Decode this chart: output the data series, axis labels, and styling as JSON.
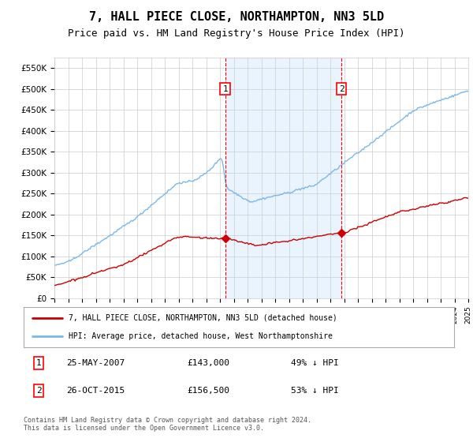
{
  "title": "7, HALL PIECE CLOSE, NORTHAMPTON, NN3 5LD",
  "subtitle": "Price paid vs. HM Land Registry's House Price Index (HPI)",
  "title_fontsize": 11,
  "subtitle_fontsize": 9,
  "hpi_color": "#7ab8e8",
  "price_color": "#cc0000",
  "background_color": "#ffffff",
  "plot_bg_color": "#ffffff",
  "grid_color": "#cccccc",
  "ylim": [
    0,
    575000
  ],
  "yticks": [
    0,
    50000,
    100000,
    150000,
    200000,
    250000,
    300000,
    350000,
    400000,
    450000,
    500000,
    550000
  ],
  "ytick_labels": [
    "£0",
    "£50K",
    "£100K",
    "£150K",
    "£200K",
    "£250K",
    "£300K",
    "£350K",
    "£400K",
    "£450K",
    "£500K",
    "£550K"
  ],
  "marker1_x": 2007.38,
  "marker1_y": 143000,
  "marker2_x": 2015.81,
  "marker2_y": 156500,
  "legend_line1": "7, HALL PIECE CLOSE, NORTHAMPTON, NN3 5LD (detached house)",
  "legend_line2": "HPI: Average price, detached house, West Northamptonshire",
  "note1_date": "25-MAY-2007",
  "note1_price": "£143,000",
  "note1_pct": "49% ↓ HPI",
  "note2_date": "26-OCT-2015",
  "note2_price": "£156,500",
  "note2_pct": "53% ↓ HPI",
  "footer": "Contains HM Land Registry data © Crown copyright and database right 2024.\nThis data is licensed under the Open Government Licence v3.0.",
  "xmin": 1995,
  "xmax": 2025,
  "shade_color": "#ddeeff"
}
